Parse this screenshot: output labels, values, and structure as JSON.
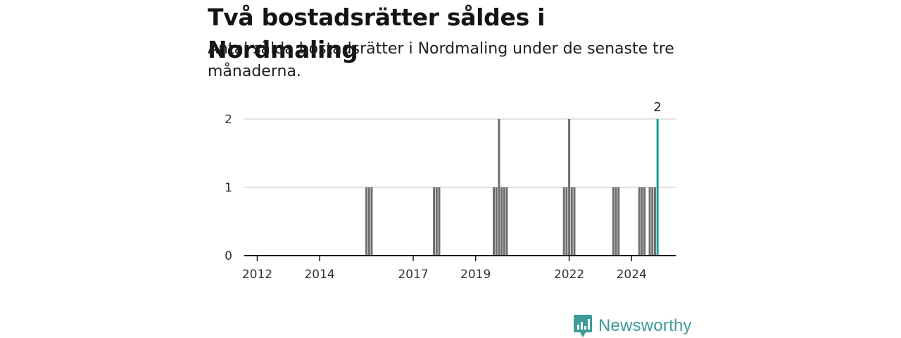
{
  "title": "Två bostadsrätter såldes i Nordmaling",
  "subtitle": "Antal sålda bostadsrätter i Nordmaling under de senaste tre månaderna.",
  "brand": {
    "name": "Newsworthy",
    "icon": "newsworthy-logo-icon",
    "color": "#3d9b97"
  },
  "colors": {
    "bar": "#6e6e6e",
    "highlight": "#1a9e94",
    "grid": "#d9d9d9",
    "axis": "#1a1a1a"
  },
  "chart_data": {
    "type": "bar",
    "title": "Två bostadsrätter såldes i Nordmaling",
    "subtitle": "Antal sålda bostadsrätter i Nordmaling under de senaste tre månaderna.",
    "xlabel": "",
    "ylabel": "",
    "x_ticks": [
      "2012",
      "2014",
      "2017",
      "2019",
      "2022",
      "2024"
    ],
    "y_ticks": [
      0,
      1,
      2
    ],
    "ylim": [
      0,
      2
    ],
    "xlim": [
      "2011-08",
      "2025-06"
    ],
    "grid": true,
    "legend": "none",
    "series": [
      {
        "values": [
          {
            "x": "2015-07",
            "y": 1
          },
          {
            "x": "2015-08",
            "y": 1
          },
          {
            "x": "2015-09",
            "y": 1
          },
          {
            "x": "2017-09",
            "y": 1
          },
          {
            "x": "2017-10",
            "y": 1
          },
          {
            "x": "2017-11",
            "y": 1
          },
          {
            "x": "2019-08",
            "y": 1
          },
          {
            "x": "2019-09",
            "y": 1
          },
          {
            "x": "2019-10",
            "y": 2
          },
          {
            "x": "2019-11",
            "y": 1
          },
          {
            "x": "2019-12",
            "y": 1
          },
          {
            "x": "2020-01",
            "y": 1
          },
          {
            "x": "2021-11",
            "y": 1
          },
          {
            "x": "2021-12",
            "y": 1
          },
          {
            "x": "2022-01",
            "y": 2
          },
          {
            "x": "2022-02",
            "y": 1
          },
          {
            "x": "2022-03",
            "y": 1
          },
          {
            "x": "2023-06",
            "y": 1
          },
          {
            "x": "2023-07",
            "y": 1
          },
          {
            "x": "2023-08",
            "y": 1
          },
          {
            "x": "2024-04",
            "y": 1
          },
          {
            "x": "2024-05",
            "y": 1
          },
          {
            "x": "2024-06",
            "y": 1
          },
          {
            "x": "2024-08",
            "y": 1
          },
          {
            "x": "2024-09",
            "y": 1
          },
          {
            "x": "2024-10",
            "y": 1
          },
          {
            "x": "2024-11",
            "y": 2
          }
        ]
      }
    ],
    "highlight": {
      "x": "2024-11",
      "label": "2"
    }
  }
}
